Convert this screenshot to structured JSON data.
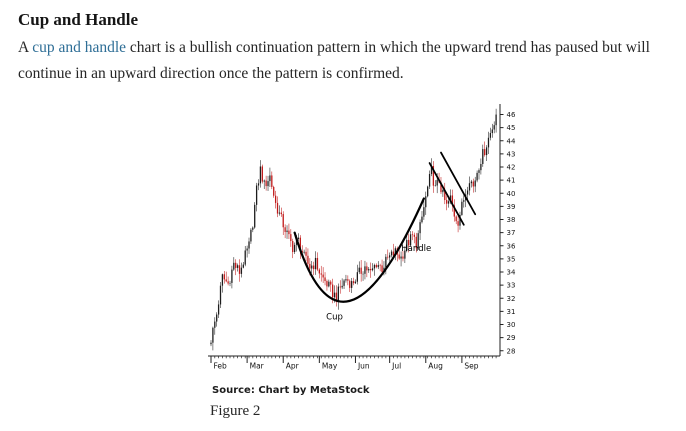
{
  "article": {
    "heading": "Cup and Handle",
    "paragraph": {
      "before_link": "A ",
      "link_text": "cup and handle",
      "after_link": " chart is a bullish continuation pattern in which the upward trend has paused but will continue in an upward direction once the pattern is confirmed."
    }
  },
  "figure": {
    "source_line": "Source: Chart by MetaStock",
    "caption": "Figure 2"
  },
  "colors": {
    "link": "#2e6e96",
    "candle_up": "#1c1c1c",
    "candle_down": "#c01818",
    "axis": "#222222",
    "annotation": "#000000"
  },
  "chart_data": {
    "type": "candlestick",
    "pattern": "cup and handle",
    "x_axis": {
      "months": [
        {
          "label": "Feb",
          "day": 0
        },
        {
          "label": "Mar",
          "day": 19
        },
        {
          "label": "Apr",
          "day": 38
        },
        {
          "label": "May",
          "day": 57
        },
        {
          "label": "Jun",
          "day": 76
        },
        {
          "label": "Jul",
          "day": 94
        },
        {
          "label": "Aug",
          "day": 113
        },
        {
          "label": "Sep",
          "day": 132
        }
      ],
      "total_days": 151
    },
    "y_axis": {
      "side": "right",
      "range": [
        27.6,
        46.8
      ],
      "ticks": [
        46,
        45,
        44,
        43,
        42,
        41,
        40,
        39,
        38,
        37,
        36,
        35,
        34,
        33,
        32,
        31,
        30,
        29,
        28
      ]
    },
    "anchors": {
      "days": [
        0,
        3,
        6,
        9,
        12,
        15,
        18,
        20,
        22,
        24,
        26,
        28,
        31,
        34,
        37,
        40,
        43,
        46,
        49,
        52,
        55,
        58,
        61,
        64,
        66,
        68,
        71,
        74,
        78,
        81,
        84,
        87,
        90,
        93,
        97,
        100,
        103,
        106,
        108,
        110,
        112,
        114,
        116,
        118,
        120,
        122,
        124,
        126,
        128,
        130,
        132,
        134,
        136,
        138,
        140,
        142,
        144,
        146,
        148,
        150
      ],
      "prices": [
        28.9,
        30.8,
        33.6,
        33.1,
        34.6,
        34.0,
        35.2,
        36.0,
        37.8,
        40.2,
        41.8,
        40.6,
        41.3,
        39.2,
        38.0,
        36.9,
        35.9,
        36.4,
        35.1,
        34.4,
        34.7,
        33.7,
        33.1,
        32.4,
        32.1,
        32.8,
        33.5,
        33.1,
        33.9,
        34.4,
        33.9,
        34.7,
        34.3,
        35.0,
        35.5,
        35.1,
        36.1,
        36.7,
        36.2,
        37.4,
        38.9,
        40.4,
        41.7,
        40.3,
        41.0,
        39.8,
        39.0,
        39.6,
        38.4,
        37.9,
        39.0,
        40.1,
        41.2,
        40.5,
        41.7,
        42.6,
        43.3,
        44.2,
        45.0,
        46.1
      ]
    },
    "annotations": {
      "cup_arc": {
        "start": {
          "day": 44,
          "price": 37.0
        },
        "bottom": {
          "day": 73,
          "price": 31.8
        },
        "end": {
          "day": 112,
          "price": 39.6
        }
      },
      "handle_lines": [
        {
          "from": {
            "day": 115,
            "price": 42.3
          },
          "to": {
            "day": 133,
            "price": 37.6
          }
        },
        {
          "from": {
            "day": 121,
            "price": 43.1
          },
          "to": {
            "day": 139,
            "price": 38.4
          }
        }
      ],
      "labels": [
        {
          "text": "Cup",
          "day": 65,
          "price": 30.4
        },
        {
          "text": "Handle",
          "day": 108,
          "price": 35.6
        }
      ]
    }
  }
}
